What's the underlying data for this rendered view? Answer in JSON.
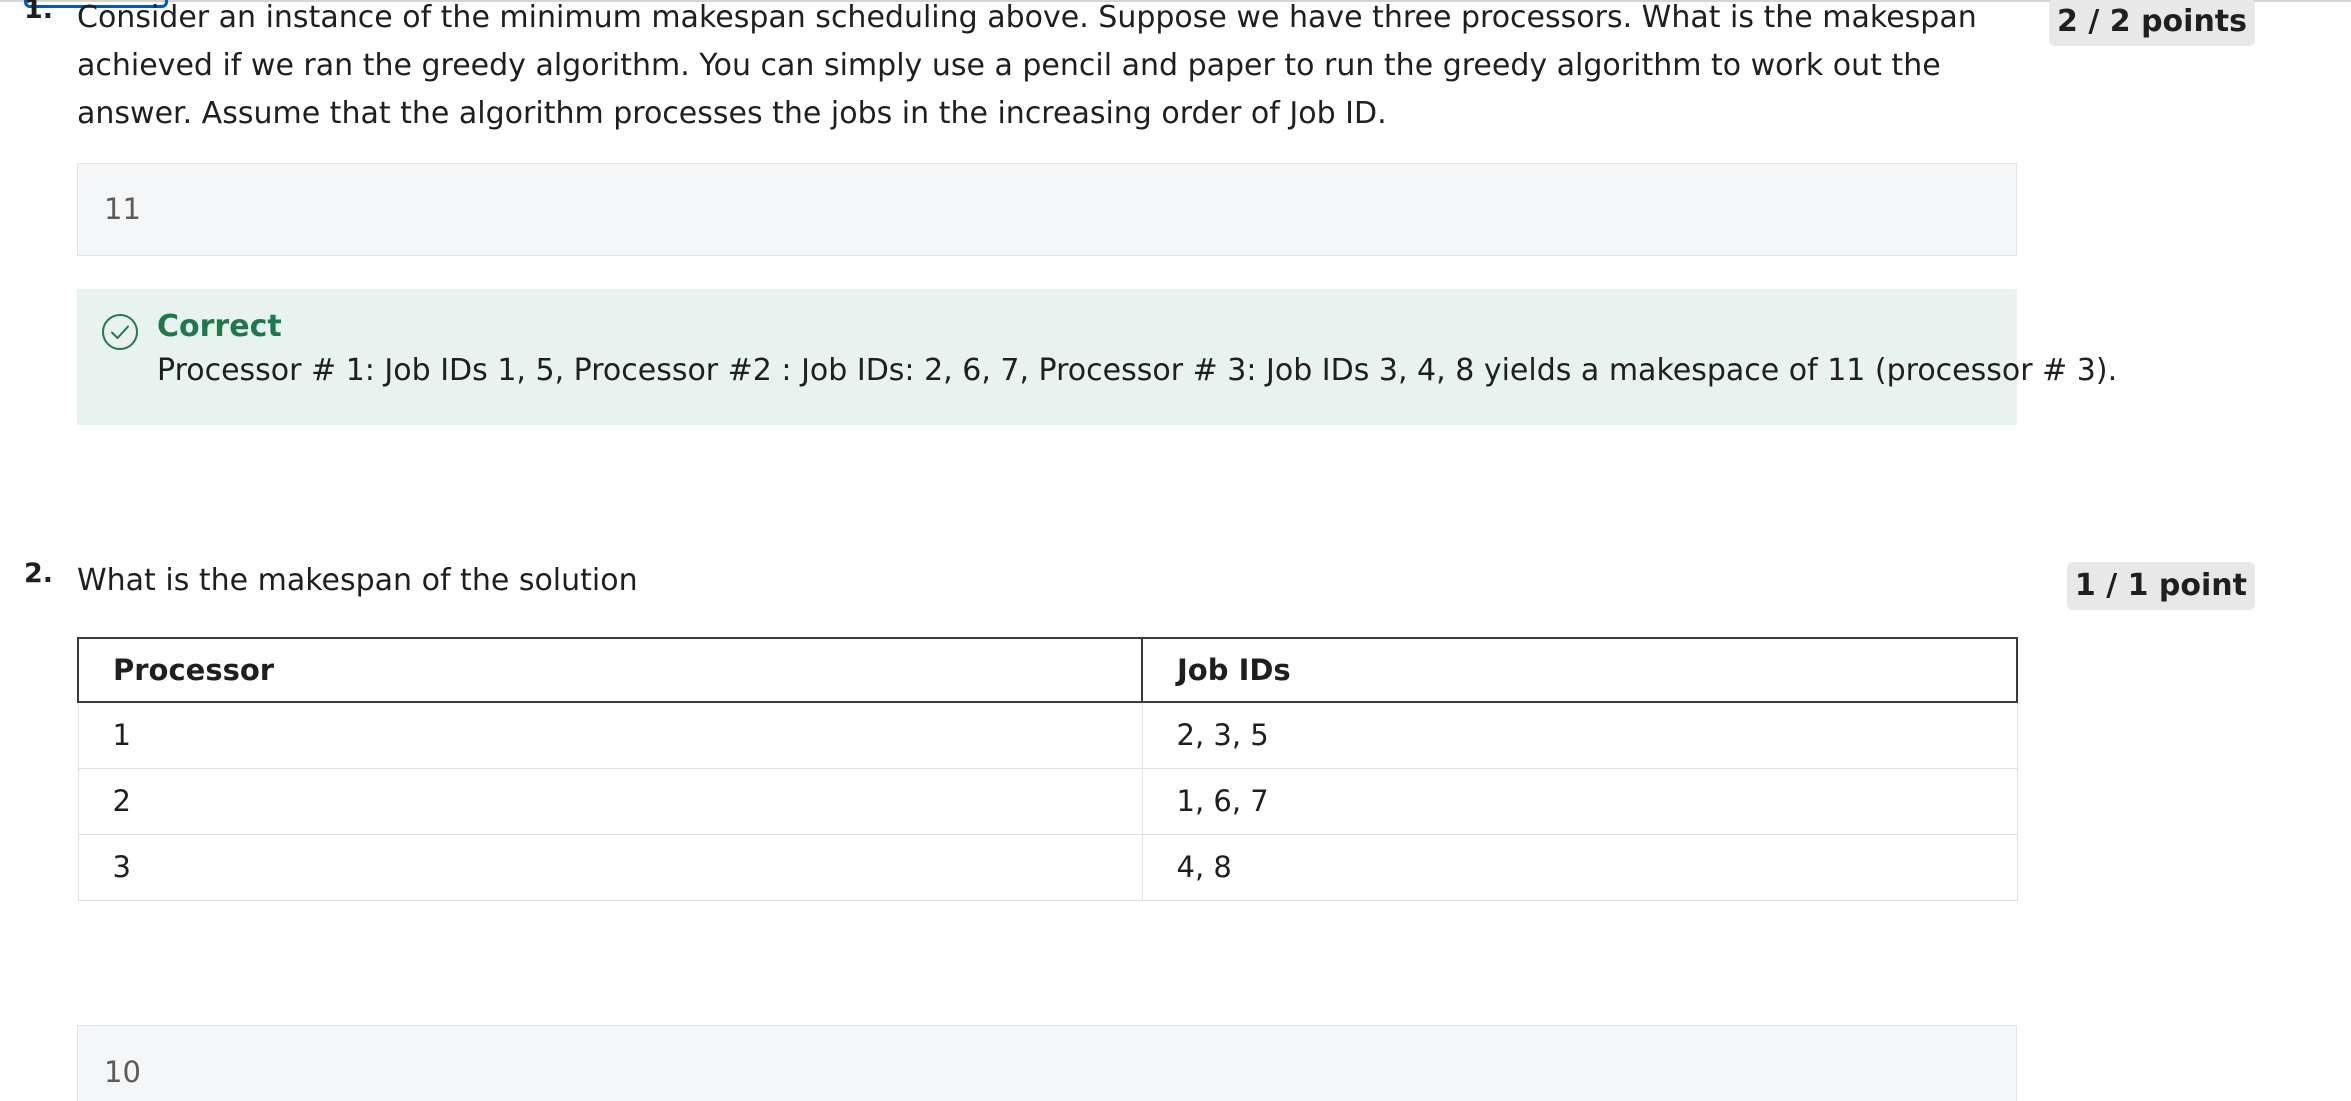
{
  "questions": [
    {
      "number": "1.",
      "text": "Consider an instance of the minimum makespan scheduling above. Suppose we have three processors. What is the makespan achieved if we ran the greedy algorithm. You can simply use a pencil and paper to run the greedy algorithm to work out the answer. Assume that the algorithm processes the jobs in the increasing order of Job ID.",
      "points": "2 / 2 points",
      "answer": "11",
      "feedback": {
        "status": "Correct",
        "text": "Processor # 1: Job IDs 1, 5,  Processor #2 : Job IDs: 2, 6, 7, Processor # 3: Job IDs 3, 4, 8 yields a makespace of 11 (processor # 3)."
      }
    },
    {
      "number": "2.",
      "text": "What is the makespan of the solution",
      "points": "1 / 1 point",
      "table": {
        "headers": [
          "Processor",
          "Job IDs"
        ],
        "rows": [
          [
            "1",
            "2, 3, 5"
          ],
          [
            "2",
            "1, 6, 7"
          ],
          [
            "3",
            "4, 8"
          ]
        ]
      },
      "answer": "10"
    }
  ],
  "colors": {
    "correct": "#1e7a4e",
    "feedback_bg": "#e8f2ee",
    "focus": "#0056d2"
  },
  "icons": {
    "correct": "check-circle-icon"
  }
}
